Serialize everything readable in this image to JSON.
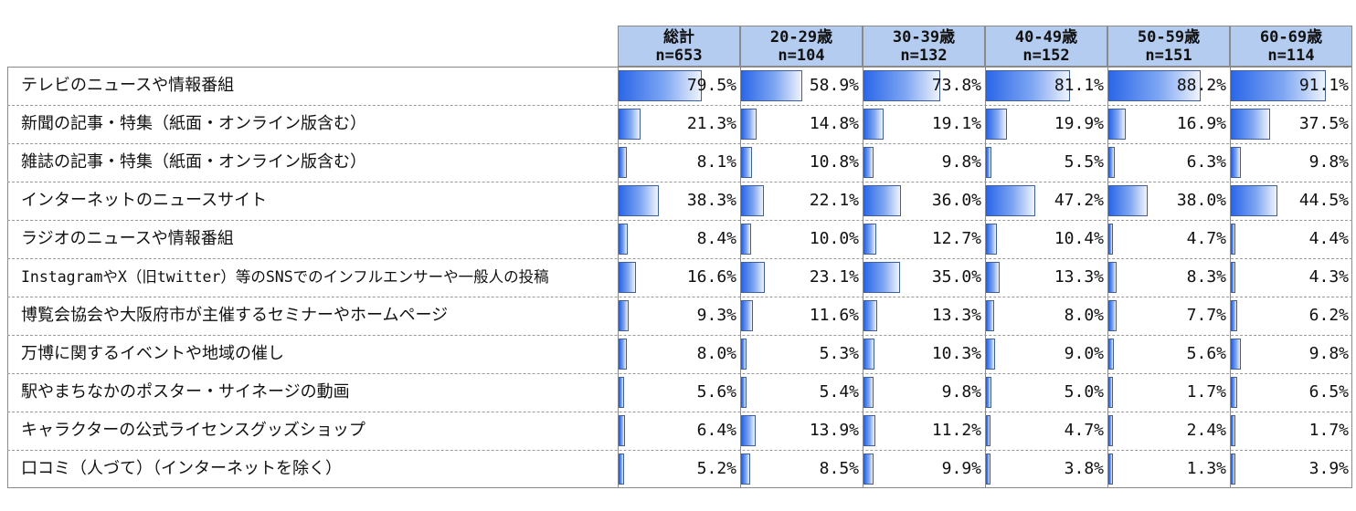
{
  "chart_data": {
    "type": "table",
    "columns": [
      {
        "name": "総計",
        "n": "n=653"
      },
      {
        "name": "20-29歳",
        "n": "n=104"
      },
      {
        "name": "30-39歳",
        "n": "n=132"
      },
      {
        "name": "40-49歳",
        "n": "n=152"
      },
      {
        "name": "50-59歳",
        "n": "n=151"
      },
      {
        "name": "60-69歳",
        "n": "n=114"
      }
    ],
    "rows": [
      {
        "label": "テレビのニュースや情報番組",
        "values": [
          79.5,
          58.9,
          73.8,
          81.1,
          88.2,
          91.1
        ],
        "labels": [
          "79.5%",
          "58.9%",
          "73.8%",
          "81.1%",
          "88.2%",
          "91.1%"
        ]
      },
      {
        "label": "新聞の記事・特集（紙面・オンライン版含む）",
        "values": [
          21.3,
          14.8,
          19.1,
          19.9,
          16.9,
          37.5
        ],
        "labels": [
          "21.3%",
          "14.8%",
          "19.1%",
          "19.9%",
          "16.9%",
          "37.5%"
        ]
      },
      {
        "label": "雑誌の記事・特集（紙面・オンライン版含む）",
        "values": [
          8.1,
          10.8,
          9.8,
          5.5,
          6.3,
          9.8
        ],
        "labels": [
          "8.1%",
          "10.8%",
          "9.8%",
          "5.5%",
          "6.3%",
          "9.8%"
        ]
      },
      {
        "label": "インターネットのニュースサイト",
        "values": [
          38.3,
          22.1,
          36.0,
          47.2,
          38.0,
          44.5
        ],
        "labels": [
          "38.3%",
          "22.1%",
          "36.0%",
          "47.2%",
          "38.0%",
          "44.5%"
        ]
      },
      {
        "label": "ラジオのニュースや情報番組",
        "values": [
          8.4,
          10.0,
          12.7,
          10.4,
          4.7,
          4.4
        ],
        "labels": [
          "8.4%",
          "10.0%",
          "12.7%",
          "10.4%",
          "4.7%",
          "4.4%"
        ]
      },
      {
        "label": "InstagramやX（旧twitter）等のSNSでのインフルエンサーや一般人の投稿",
        "values": [
          16.6,
          23.1,
          35.0,
          13.3,
          8.3,
          4.3
        ],
        "labels": [
          "16.6%",
          "23.1%",
          "35.0%",
          "13.3%",
          "8.3%",
          "4.3%"
        ]
      },
      {
        "label": "博覧会協会や大阪府市が主催するセミナーやホームページ",
        "values": [
          9.3,
          11.6,
          13.3,
          8.0,
          7.7,
          6.2
        ],
        "labels": [
          "9.3%",
          "11.6%",
          "13.3%",
          "8.0%",
          "7.7%",
          "6.2%"
        ]
      },
      {
        "label": "万博に関するイベントや地域の催し",
        "values": [
          8.0,
          5.3,
          10.3,
          9.0,
          5.6,
          9.8
        ],
        "labels": [
          "8.0%",
          "5.3%",
          "10.3%",
          "9.0%",
          "5.6%",
          "9.8%"
        ]
      },
      {
        "label": "駅やまちなかのポスター・サイネージの動画",
        "values": [
          5.6,
          5.4,
          9.8,
          5.0,
          1.7,
          6.5
        ],
        "labels": [
          "5.6%",
          "5.4%",
          "9.8%",
          "5.0%",
          "1.7%",
          "6.5%"
        ]
      },
      {
        "label": "キャラクターの公式ライセンスグッズショップ",
        "values": [
          6.4,
          13.9,
          11.2,
          4.7,
          2.4,
          1.7
        ],
        "labels": [
          "6.4%",
          "13.9%",
          "11.2%",
          "4.7%",
          "2.4%",
          "1.7%"
        ]
      },
      {
        "label": "口コミ（人づて）（インターネットを除く）",
        "values": [
          5.2,
          8.5,
          9.9,
          3.8,
          1.3,
          3.9
        ],
        "labels": [
          "5.2%",
          "8.5%",
          "9.9%",
          "3.8%",
          "1.3%",
          "3.9%"
        ]
      }
    ],
    "colors": {
      "header_bg": "#b4ccf0",
      "bar_dark": "#2b67e8",
      "bar_light": "#eef3fd",
      "bar_border": "#3c5ea8"
    }
  }
}
